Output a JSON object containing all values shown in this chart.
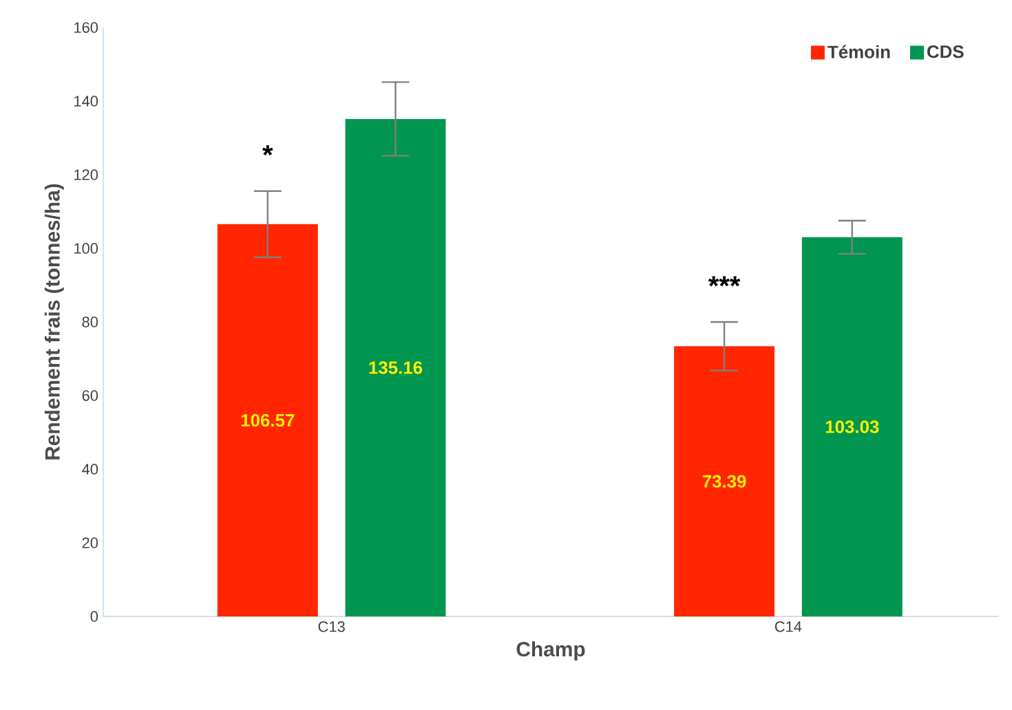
{
  "chart_data": {
    "type": "bar",
    "xlabel": "Champ",
    "ylabel": "Rendement frais (tonnes/ha)",
    "categories": [
      "C13",
      "C14"
    ],
    "series": [
      {
        "name": "Témoin",
        "color": "#ff2600",
        "values": [
          106.57,
          73.39
        ],
        "errors": [
          9,
          6.6
        ]
      },
      {
        "name": "CDS",
        "color": "#00964f",
        "values": [
          135.16,
          103.03
        ],
        "errors": [
          10,
          4.5
        ]
      }
    ],
    "ylim": [
      0,
      160
    ],
    "yticks": [
      0,
      20,
      40,
      60,
      80,
      100,
      120,
      140,
      160
    ],
    "data_labels": true,
    "legend": "top right",
    "grid": false,
    "annotations": [
      "*",
      "***"
    ]
  }
}
